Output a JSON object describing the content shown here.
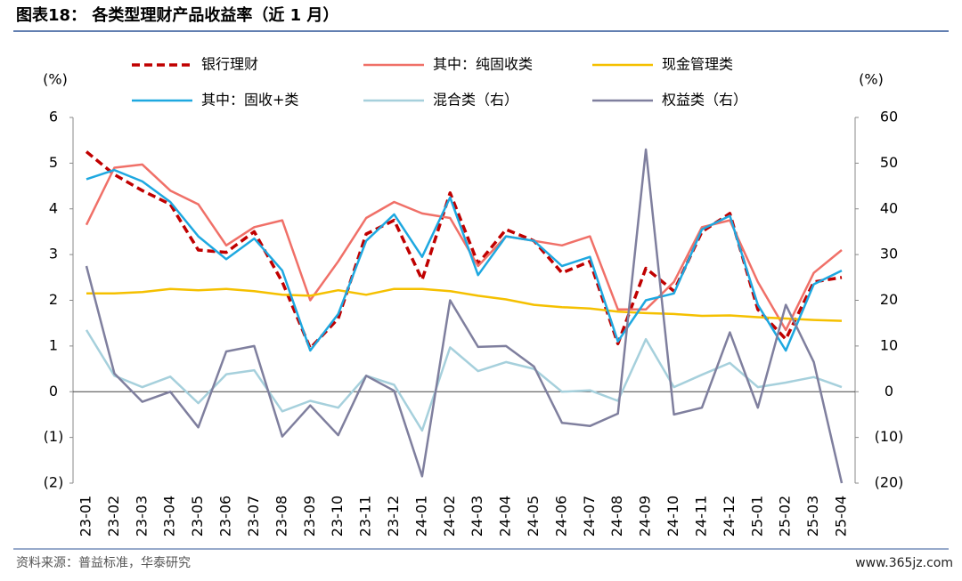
{
  "header": {
    "title": "图表18：  各类型理财产品收益率（近 1 月）"
  },
  "footer": {
    "source": "资料来源：普益标准，华泰研究",
    "watermark": "www.365jz.com"
  },
  "chart_data": {
    "type": "line",
    "y_label": "(%)",
    "y2_label": "(%)",
    "categories": [
      "23-01",
      "23-02",
      "23-03",
      "23-04",
      "23-05",
      "23-06",
      "23-07",
      "23-08",
      "23-09",
      "23-10",
      "23-11",
      "23-12",
      "24-01",
      "24-02",
      "24-03",
      "24-04",
      "24-05",
      "24-06",
      "24-07",
      "24-08",
      "24-09",
      "24-10",
      "24-11",
      "24-12",
      "25-01",
      "25-02",
      "25-03",
      "25-04"
    ],
    "ylim": [
      -2,
      6
    ],
    "yticks": [
      {
        "value": -2,
        "label": "(2)"
      },
      {
        "value": -1,
        "label": "(1)"
      },
      0,
      1,
      2,
      3,
      4,
      5,
      6
    ],
    "y2lim": [
      -20,
      60
    ],
    "y2ticks": [
      {
        "value": -20,
        "label": "(20)"
      },
      {
        "value": -10,
        "label": "(10)"
      },
      0,
      10,
      20,
      30,
      40,
      50,
      60
    ],
    "series": [
      {
        "name": "银行理财",
        "color": "#c00000",
        "dashed": true,
        "values": [
          5.25,
          4.75,
          4.4,
          4.1,
          3.1,
          3.05,
          3.5,
          2.4,
          0.95,
          1.6,
          3.45,
          3.75,
          2.45,
          4.35,
          2.8,
          3.55,
          3.3,
          2.6,
          2.85,
          1.05,
          2.7,
          2.2,
          3.5,
          3.9,
          1.8,
          1.15,
          2.4,
          2.5
        ]
      },
      {
        "name": "其中：纯固收类",
        "color": "#f07068",
        "values": [
          3.65,
          4.9,
          4.97,
          4.4,
          4.1,
          3.2,
          3.6,
          3.75,
          2.0,
          2.85,
          3.8,
          4.15,
          3.9,
          3.8,
          2.75,
          3.4,
          3.3,
          3.2,
          3.4,
          1.8,
          1.8,
          2.4,
          3.6,
          3.75,
          2.4,
          1.35,
          2.6,
          3.1
        ]
      },
      {
        "name": "现金管理类",
        "color": "#f5c000",
        "values": [
          2.15,
          2.15,
          2.18,
          2.25,
          2.22,
          2.25,
          2.2,
          2.12,
          2.1,
          2.22,
          2.12,
          2.25,
          2.25,
          2.2,
          2.1,
          2.02,
          1.9,
          1.85,
          1.82,
          1.75,
          1.72,
          1.7,
          1.66,
          1.67,
          1.63,
          1.6,
          1.57,
          1.55
        ]
      },
      {
        "name": "其中：固收+类",
        "color": "#1ea8e0",
        "values": [
          4.65,
          4.85,
          4.6,
          4.15,
          3.4,
          2.9,
          3.35,
          2.65,
          0.9,
          1.7,
          3.3,
          3.88,
          2.95,
          4.25,
          2.55,
          3.4,
          3.3,
          2.75,
          2.95,
          1.1,
          2.0,
          2.15,
          3.55,
          3.85,
          1.9,
          0.9,
          2.35,
          2.65
        ]
      },
      {
        "name": "混合类（右）",
        "color": "#a6d0dc",
        "axis": "y2",
        "values": [
          13.5,
          3.5,
          1,
          3.3,
          -2.5,
          3.8,
          4.7,
          -4.3,
          -2,
          -3.5,
          3.5,
          1.5,
          -8.5,
          9.7,
          4.5,
          6.5,
          5,
          0,
          0.3,
          -2,
          11.5,
          1,
          3.7,
          6.3,
          1,
          2,
          3.2,
          1
        ]
      },
      {
        "name": "权益类（右）",
        "color": "#7f7f9e",
        "axis": "y2",
        "values": [
          27.5,
          4,
          -2.2,
          0,
          -7.8,
          8.8,
          10,
          -9.8,
          -3,
          -9.5,
          3.5,
          0.2,
          -18.5,
          20,
          9.8,
          10,
          5.5,
          -6.8,
          -7.5,
          -4.8,
          53,
          -5,
          -3.5,
          13,
          -3.5,
          19,
          6.5,
          -20
        ]
      }
    ]
  }
}
